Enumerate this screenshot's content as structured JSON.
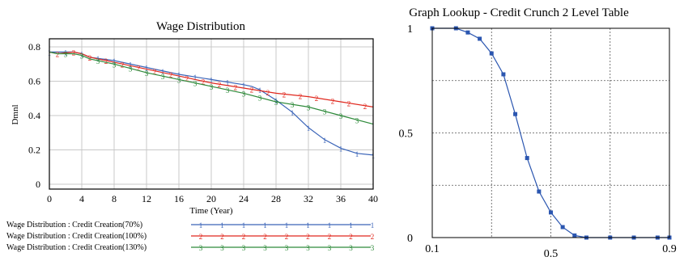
{
  "colors": {
    "series_70": "#3a64b8",
    "series_100": "#e0281e",
    "series_130": "#2e8a3a",
    "lookup": "#2b56b0",
    "grid_left": "#c8c8c8",
    "grid_right": "#555555"
  },
  "chart_data": [
    {
      "type": "line",
      "title": "Wage Distribution",
      "xlabel": "Time (Year)",
      "ylabel": "Dmnl",
      "xlim": [
        0,
        40
      ],
      "ylim": [
        0,
        0.85
      ],
      "x_ticks": [
        "0",
        "4",
        "8",
        "12",
        "16",
        "20",
        "24",
        "28",
        "32",
        "36",
        "40"
      ],
      "y_ticks": [
        {
          "value": 0,
          "label": "0"
        },
        {
          "value": 0.2,
          "label": "0.2"
        },
        {
          "value": 0.4,
          "label": "0.4"
        },
        {
          "value": 0.6,
          "label": "0.6"
        },
        {
          "value": 0.8,
          "label": "0.8"
        }
      ],
      "grid": true,
      "legend_position": "bottom",
      "series": [
        {
          "name": "Wage Distribution : Credit Creation(70%)",
          "marker": "1",
          "points": [
            [
              0,
              0.77
            ],
            [
              1,
              0.77
            ],
            [
              3,
              0.77
            ],
            [
              4,
              0.76
            ],
            [
              5,
              0.74
            ],
            [
              8,
              0.72
            ],
            [
              12,
              0.68
            ],
            [
              16,
              0.64
            ],
            [
              20,
              0.61
            ],
            [
              24,
              0.58
            ],
            [
              25,
              0.57
            ],
            [
              26,
              0.55
            ],
            [
              28,
              0.49
            ],
            [
              30,
              0.42
            ],
            [
              32,
              0.33
            ],
            [
              34,
              0.26
            ],
            [
              36,
              0.21
            ],
            [
              38,
              0.18
            ],
            [
              40,
              0.17
            ]
          ],
          "marker_x": [
            0,
            2,
            4,
            6,
            8,
            10,
            12,
            14,
            16,
            18,
            20,
            22,
            24,
            26,
            28,
            30,
            32,
            34,
            36,
            38,
            40
          ]
        },
        {
          "name": "Wage Distribution : Credit Creation(100%)",
          "marker": "2",
          "points": [
            [
              0,
              0.77
            ],
            [
              1,
              0.76
            ],
            [
              3,
              0.77
            ],
            [
              4,
              0.76
            ],
            [
              5,
              0.74
            ],
            [
              8,
              0.71
            ],
            [
              12,
              0.67
            ],
            [
              16,
              0.63
            ],
            [
              20,
              0.59
            ],
            [
              24,
              0.56
            ],
            [
              28,
              0.53
            ],
            [
              32,
              0.51
            ],
            [
              36,
              0.48
            ],
            [
              40,
              0.45
            ]
          ],
          "marker_x": [
            1,
            3,
            5,
            7,
            9,
            11,
            13,
            15,
            17,
            19,
            21,
            23,
            25,
            27,
            29,
            31,
            33,
            35,
            37,
            39
          ]
        },
        {
          "name": "Wage Distribution : Credit Creation(130%)",
          "marker": "3",
          "points": [
            [
              0,
              0.77
            ],
            [
              1,
              0.76
            ],
            [
              3,
              0.76
            ],
            [
              4,
              0.75
            ],
            [
              5,
              0.73
            ],
            [
              8,
              0.7
            ],
            [
              12,
              0.65
            ],
            [
              16,
              0.61
            ],
            [
              20,
              0.57
            ],
            [
              24,
              0.53
            ],
            [
              28,
              0.48
            ],
            [
              32,
              0.45
            ],
            [
              36,
              0.4
            ],
            [
              40,
              0.35
            ]
          ],
          "marker_x": [
            2,
            4,
            6,
            8,
            10,
            12,
            14,
            16,
            18,
            20,
            22,
            24,
            26,
            28,
            30,
            32,
            34,
            36,
            38
          ]
        }
      ]
    },
    {
      "type": "line",
      "title": "Graph Lookup - Credit Crunch 2 Level Table",
      "xlabel": "",
      "ylabel": "",
      "xlim": [
        0.1,
        0.9
      ],
      "ylim": [
        0,
        1
      ],
      "x_ticks": [
        {
          "value": 0.1,
          "label": "0.1"
        },
        {
          "value": 0.5,
          "label": "0.5"
        },
        {
          "value": 0.9,
          "label": "0.9"
        }
      ],
      "y_ticks": [
        {
          "value": 0,
          "label": "0"
        },
        {
          "value": 0.5,
          "label": "0.5"
        },
        {
          "value": 1,
          "label": "1"
        }
      ],
      "grid": true,
      "series": [
        {
          "points": [
            [
              0.1,
              1.0
            ],
            [
              0.18,
              1.0
            ],
            [
              0.22,
              0.98
            ],
            [
              0.26,
              0.95
            ],
            [
              0.3,
              0.88
            ],
            [
              0.34,
              0.78
            ],
            [
              0.38,
              0.59
            ],
            [
              0.42,
              0.38
            ],
            [
              0.46,
              0.22
            ],
            [
              0.5,
              0.12
            ],
            [
              0.54,
              0.05
            ],
            [
              0.58,
              0.01
            ],
            [
              0.62,
              0.0
            ],
            [
              0.7,
              0.0
            ],
            [
              0.78,
              0.0
            ],
            [
              0.86,
              0.0
            ],
            [
              0.9,
              0.0
            ]
          ]
        }
      ]
    }
  ]
}
